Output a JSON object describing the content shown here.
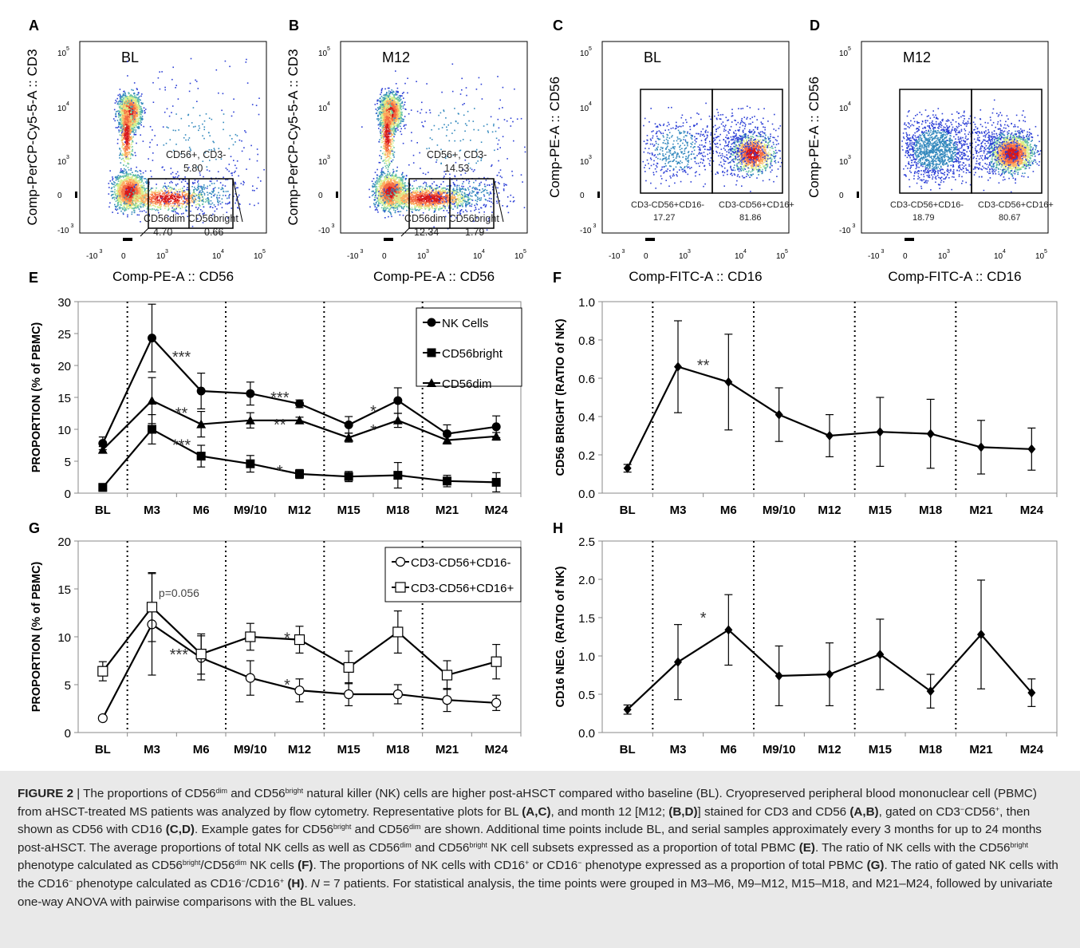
{
  "panels": {
    "A": {
      "letter": "A",
      "sample": "BL",
      "xlabel": "Comp-PE-A :: CD56",
      "ylabel": "Comp-PerCP-Cy5-5-A :: CD3",
      "gate_label": "CD56+, CD3-",
      "gate_value": "5.80",
      "sub_label": "CD56dim CD56bright",
      "sub_dim_value": "4.70",
      "sub_bright_value": "0.66"
    },
    "B": {
      "letter": "B",
      "sample": "M12",
      "xlabel": "Comp-PE-A :: CD56",
      "ylabel": "Comp-PerCP-Cy5-5-A :: CD3",
      "gate_label": "CD56+, CD3-",
      "gate_value": "14.53",
      "sub_label": "CD56dim CD56bright",
      "sub_dim_value": "12.34",
      "sub_bright_value": "1.79"
    },
    "C": {
      "letter": "C",
      "sample": "BL",
      "xlabel": "Comp-FITC-A :: CD16",
      "ylabel": "Comp-PE-A :: CD56",
      "left_label": "CD3-CD56+CD16-",
      "left_value": "17.27",
      "right_label": "CD3-CD56+CD16+",
      "right_value": "81.86"
    },
    "D": {
      "letter": "D",
      "sample": "M12",
      "xlabel": "Comp-FITC-A :: CD16",
      "ylabel": "Comp-PE-A :: CD56",
      "left_label": "CD3-CD56+CD16-",
      "left_value": "18.79",
      "right_label": "CD3-CD56+CD16+",
      "right_value": "80.67"
    },
    "flow_ticks": {
      "y": [
        "10",
        "10",
        "10",
        "0",
        "-10"
      ],
      "y_exp": [
        "5",
        "4",
        "3",
        "",
        "3"
      ],
      "x": [
        "-10",
        "0",
        "10",
        "10",
        "10"
      ],
      "x_exp": [
        "3",
        "",
        "3",
        "4",
        "5"
      ]
    }
  },
  "chart_data": [
    {
      "panel": "E",
      "type": "line",
      "categories": [
        "BL",
        "M3",
        "M6",
        "M9/10",
        "M12",
        "M15",
        "M18",
        "M21",
        "M24"
      ],
      "ylabel": "PROPORTION (% of PBMC)",
      "ylim": [
        0,
        30
      ],
      "yticks": [
        "0",
        "5",
        "10",
        "15",
        "20",
        "25",
        "30"
      ],
      "legend_position": "top-right",
      "series": [
        {
          "name": "NK Cells",
          "marker": "circle",
          "values": [
            7.8,
            24.3,
            16.0,
            15.6,
            14.0,
            10.7,
            14.5,
            9.3,
            10.4
          ],
          "err": [
            1.0,
            5.3,
            2.8,
            1.8,
            0.6,
            1.3,
            2.0,
            1.4,
            1.7
          ]
        },
        {
          "name": "CD56bright",
          "marker": "square",
          "values": [
            0.9,
            10.0,
            5.8,
            4.6,
            3.0,
            2.6,
            2.8,
            1.9,
            1.7
          ],
          "err": [
            0.6,
            2.3,
            1.7,
            1.3,
            0.7,
            0.8,
            2.0,
            0.9,
            1.5
          ]
        },
        {
          "name": "CD56dim",
          "marker": "triangle",
          "values": [
            6.8,
            14.5,
            10.8,
            11.4,
            11.4,
            8.7,
            11.4,
            8.3,
            8.9
          ],
          "err": [
            0.5,
            3.6,
            2.0,
            1.2,
            0.5,
            0.7,
            1.1,
            0.6,
            0.6
          ]
        }
      ],
      "annotations": [
        {
          "text": "***",
          "x": 1.6,
          "y": 22.0
        },
        {
          "text": "**",
          "x": 1.6,
          "y": 13.2
        },
        {
          "text": "***",
          "x": 1.6,
          "y": 8.2
        },
        {
          "text": "***",
          "x": 3.6,
          "y": 15.6
        },
        {
          "text": "**",
          "x": 3.6,
          "y": 11.4
        },
        {
          "text": "*",
          "x": 3.6,
          "y": 4.1
        },
        {
          "text": "*",
          "x": 5.5,
          "y": 13.5
        },
        {
          "text": "*",
          "x": 5.5,
          "y": 10.5
        }
      ],
      "vlines": [
        0.5,
        2.5,
        4.5,
        6.5
      ]
    },
    {
      "panel": "F",
      "type": "line",
      "categories": [
        "BL",
        "M3",
        "M6",
        "M9/10",
        "M12",
        "M15",
        "M18",
        "M21",
        "M24"
      ],
      "ylabel": "CD56 BRIGHT (RATIO of NK)",
      "ylim": [
        0,
        1.0
      ],
      "yticks": [
        "0.0",
        "0.2",
        "0.4",
        "0.6",
        "0.8",
        "1.0"
      ],
      "series": [
        {
          "name": "",
          "marker": "diamond",
          "values": [
            0.13,
            0.66,
            0.58,
            0.41,
            0.3,
            0.32,
            0.31,
            0.24,
            0.23
          ],
          "err": [
            0.02,
            0.24,
            0.25,
            0.14,
            0.11,
            0.18,
            0.18,
            0.14,
            0.11
          ]
        }
      ],
      "annotations": [
        {
          "text": "**",
          "x": 1.5,
          "y": 0.69
        }
      ],
      "vlines": [
        0.5,
        2.5,
        4.5,
        6.5
      ]
    },
    {
      "panel": "G",
      "type": "line",
      "categories": [
        "BL",
        "M3",
        "M6",
        "M9/10",
        "M12",
        "M15",
        "M18",
        "M21",
        "M24"
      ],
      "ylabel": "PROPORTION (% of PBMC)",
      "ylim": [
        0,
        20
      ],
      "yticks": [
        "0",
        "5",
        "10",
        "15",
        "20"
      ],
      "legend_position": "top-right",
      "series": [
        {
          "name": "CD3-CD56+CD16-",
          "marker": "open-circle",
          "values": [
            1.5,
            11.3,
            7.8,
            5.7,
            4.4,
            4.0,
            4.0,
            3.4,
            3.1
          ],
          "err": [
            0.2,
            5.3,
            2.3,
            1.8,
            1.2,
            1.2,
            1.0,
            1.2,
            0.8
          ]
        },
        {
          "name": "CD3-CD56+CD16+",
          "marker": "open-square",
          "values": [
            6.4,
            13.1,
            8.2,
            10.0,
            9.7,
            6.8,
            10.5,
            6.0,
            7.4
          ],
          "err": [
            1.0,
            3.6,
            2.1,
            1.4,
            1.4,
            1.7,
            2.2,
            1.5,
            1.8
          ]
        }
      ],
      "annotations": [
        {
          "text": "p=0.056",
          "x": 1.55,
          "y": 14.5
        },
        {
          "text": "***",
          "x": 1.55,
          "y": 8.6
        },
        {
          "text": "*",
          "x": 3.75,
          "y": 10.3
        },
        {
          "text": "*",
          "x": 3.75,
          "y": 5.4
        }
      ],
      "vlines": [
        0.5,
        2.5,
        4.5,
        6.5
      ]
    },
    {
      "panel": "H",
      "type": "line",
      "categories": [
        "BL",
        "M3",
        "M6",
        "M9/10",
        "M12",
        "M15",
        "M18",
        "M21",
        "M24"
      ],
      "ylabel": "CD16 NEG. (RATIO of NK)",
      "ylim": [
        0,
        2.5
      ],
      "yticks": [
        "0.0",
        "0.5",
        "1.0",
        "1.5",
        "2.0",
        "2.5"
      ],
      "series": [
        {
          "name": "",
          "marker": "diamond",
          "values": [
            0.3,
            0.92,
            1.34,
            0.74,
            0.76,
            1.02,
            0.54,
            1.28,
            0.52
          ],
          "err": [
            0.06,
            0.49,
            0.46,
            0.39,
            0.41,
            0.46,
            0.22,
            0.71,
            0.18
          ]
        }
      ],
      "annotations": [
        {
          "text": "*",
          "x": 1.5,
          "y": 1.55
        }
      ],
      "vlines": [
        0.5,
        2.5,
        4.5,
        6.5
      ]
    }
  ],
  "panel_letters": {
    "E": "E",
    "F": "F",
    "G": "G",
    "H": "H"
  }
}
